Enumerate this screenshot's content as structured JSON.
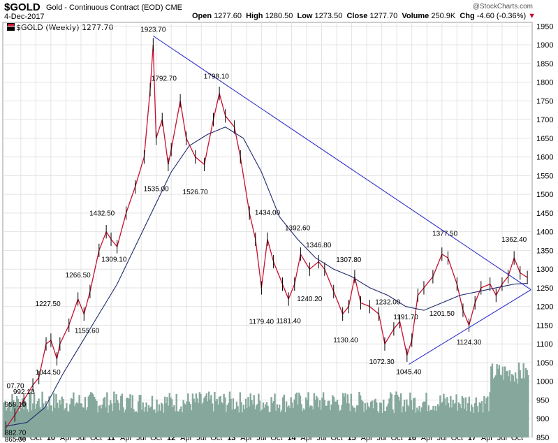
{
  "header": {
    "symbol": "$GOLD",
    "description": "Gold - Continuous Contract (EOD)",
    "exchange": "CME",
    "date": "4-Dec-2017",
    "open_label": "Open",
    "open": "1277.60",
    "high_label": "High",
    "high": "1280.50",
    "low_label": "Low",
    "low": "1273.50",
    "close_label": "Close",
    "close": "1277.70",
    "volume_label": "Volume",
    "volume": "250.9K",
    "chg_label": "Chg",
    "chg": "-4.60 (-0.36%)",
    "brand": "@StockCharts.com"
  },
  "legend": {
    "text": "$GOLD (Weekly) 1277.70"
  },
  "colors": {
    "up": "#000000",
    "down": "#c8102e",
    "trendline": "#3333cc",
    "ma": "#1f2a6b",
    "volume": "#86a89c",
    "grid": "#e3e3e3"
  },
  "chart_data": {
    "type": "line",
    "ylim": [
      850,
      1960
    ],
    "y_ticks": [
      850,
      900,
      950,
      1000,
      1050,
      1100,
      1150,
      1200,
      1250,
      1300,
      1350,
      1400,
      1450,
      1500,
      1550,
      1600,
      1650,
      1700,
      1750,
      1800,
      1850,
      1900,
      1950
    ],
    "x_ticks": [
      "Jul",
      "Oct",
      "10",
      "Apr",
      "Jul",
      "Oct",
      "11",
      "Apr",
      "Jul",
      "Oct",
      "12",
      "Apr",
      "Jul",
      "Oct",
      "13",
      "Apr",
      "Jul",
      "Oct",
      "14",
      "Apr",
      "Jul",
      "Oct",
      "15",
      "Apr",
      "Jul",
      "Oct",
      "16",
      "Apr",
      "Jul",
      "Oct",
      "17",
      "Apr",
      "Jul",
      "Oct"
    ],
    "series": [
      {
        "values": [
          [
            2009.25,
            875
          ],
          [
            2009.4,
            910
          ],
          [
            2009.55,
            950
          ],
          [
            2009.7,
            990
          ],
          [
            2009.8,
            1010
          ],
          [
            2009.92,
            1100
          ],
          [
            2010.0,
            1110
          ],
          [
            2010.1,
            1060
          ],
          [
            2010.15,
            1100
          ],
          [
            2010.3,
            1150
          ],
          [
            2010.45,
            1220
          ],
          [
            2010.55,
            1180
          ],
          [
            2010.65,
            1240
          ],
          [
            2010.8,
            1350
          ],
          [
            2010.92,
            1400
          ],
          [
            2011.0,
            1380
          ],
          [
            2011.1,
            1360
          ],
          [
            2011.25,
            1450
          ],
          [
            2011.4,
            1520
          ],
          [
            2011.55,
            1600
          ],
          [
            2011.65,
            1780
          ],
          [
            2011.7,
            1900
          ],
          [
            2011.75,
            1650
          ],
          [
            2011.85,
            1700
          ],
          [
            2011.95,
            1580
          ],
          [
            2012.0,
            1620
          ],
          [
            2012.15,
            1750
          ],
          [
            2012.25,
            1650
          ],
          [
            2012.4,
            1600
          ],
          [
            2012.55,
            1580
          ],
          [
            2012.7,
            1700
          ],
          [
            2012.8,
            1770
          ],
          [
            2012.9,
            1710
          ],
          [
            2013.05,
            1680
          ],
          [
            2013.15,
            1600
          ],
          [
            2013.3,
            1450
          ],
          [
            2013.4,
            1380
          ],
          [
            2013.5,
            1250
          ],
          [
            2013.6,
            1380
          ],
          [
            2013.7,
            1320
          ],
          [
            2013.85,
            1260
          ],
          [
            2013.95,
            1220
          ],
          [
            2014.05,
            1260
          ],
          [
            2014.15,
            1340
          ],
          [
            2014.3,
            1300
          ],
          [
            2014.45,
            1320
          ],
          [
            2014.55,
            1300
          ],
          [
            2014.7,
            1240
          ],
          [
            2014.85,
            1180
          ],
          [
            2014.95,
            1200
          ],
          [
            2015.05,
            1280
          ],
          [
            2015.15,
            1210
          ],
          [
            2015.3,
            1200
          ],
          [
            2015.45,
            1180
          ],
          [
            2015.55,
            1100
          ],
          [
            2015.7,
            1140
          ],
          [
            2015.8,
            1160
          ],
          [
            2015.92,
            1070
          ],
          [
            2016.0,
            1110
          ],
          [
            2016.1,
            1230
          ],
          [
            2016.2,
            1250
          ],
          [
            2016.35,
            1280
          ],
          [
            2016.5,
            1340
          ],
          [
            2016.6,
            1330
          ],
          [
            2016.75,
            1260
          ],
          [
            2016.85,
            1190
          ],
          [
            2016.95,
            1150
          ],
          [
            2017.05,
            1210
          ],
          [
            2017.15,
            1250
          ],
          [
            2017.3,
            1260
          ],
          [
            2017.4,
            1230
          ],
          [
            2017.5,
            1260
          ],
          [
            2017.6,
            1280
          ],
          [
            2017.7,
            1330
          ],
          [
            2017.8,
            1290
          ],
          [
            2017.92,
            1277.7
          ]
        ]
      },
      {
        "name": "",
        "values": [
          [
            2009.25,
            880
          ],
          [
            2009.6,
            890
          ],
          [
            2009.9,
            930
          ],
          [
            2010.2,
            1020
          ],
          [
            2010.5,
            1100
          ],
          [
            2010.8,
            1180
          ],
          [
            2011.1,
            1260
          ],
          [
            2011.4,
            1360
          ],
          [
            2011.7,
            1460
          ],
          [
            2012.0,
            1560
          ],
          [
            2012.3,
            1630
          ],
          [
            2012.6,
            1660
          ],
          [
            2012.9,
            1680
          ],
          [
            2013.2,
            1650
          ],
          [
            2013.5,
            1560
          ],
          [
            2013.8,
            1440
          ],
          [
            2014.1,
            1380
          ],
          [
            2014.4,
            1330
          ],
          [
            2014.7,
            1300
          ],
          [
            2015.0,
            1280
          ],
          [
            2015.3,
            1250
          ],
          [
            2015.6,
            1230
          ],
          [
            2015.9,
            1200
          ],
          [
            2016.2,
            1190
          ],
          [
            2016.5,
            1210
          ],
          [
            2016.8,
            1230
          ],
          [
            2017.1,
            1240
          ],
          [
            2017.4,
            1250
          ],
          [
            2017.7,
            1260
          ],
          [
            2017.92,
            1262
          ]
        ]
      }
    ],
    "trendlines": [
      [
        [
          2011.7,
          1923.7
        ],
        [
          2017.98,
          1245
        ]
      ],
      [
        [
          2015.95,
          1045.4
        ],
        [
          2017.98,
          1245
        ]
      ]
    ],
    "annotations": [
      {
        "text": "1923.70",
        "x": 2011.7,
        "y": 1923.7
      },
      {
        "text": "1792.70",
        "x": 2011.88,
        "y": 1792.7
      },
      {
        "text": "1798.10",
        "x": 2012.75,
        "y": 1798.1
      },
      {
        "text": "1535.00",
        "x": 2011.75,
        "y": 1535
      },
      {
        "text": "1526.70",
        "x": 2012.4,
        "y": 1526.7
      },
      {
        "text": "1432.50",
        "x": 2010.85,
        "y": 1432.5
      },
      {
        "text": "1434.00",
        "x": 2013.6,
        "y": 1434
      },
      {
        "text": "1392.60",
        "x": 2014.1,
        "y": 1392.6
      },
      {
        "text": "1346.80",
        "x": 2014.45,
        "y": 1346.8
      },
      {
        "text": "1307.80",
        "x": 2014.95,
        "y": 1307.8
      },
      {
        "text": "1377.50",
        "x": 2016.55,
        "y": 1377.5
      },
      {
        "text": "1362.40",
        "x": 2017.7,
        "y": 1362.4
      },
      {
        "text": "1266.50",
        "x": 2010.45,
        "y": 1266.5
      },
      {
        "text": "1309.10",
        "x": 2011.05,
        "y": 1309.1
      },
      {
        "text": "1227.50",
        "x": 2009.95,
        "y": 1227.5
      },
      {
        "text": "1232.00",
        "x": 2015.6,
        "y": 1232
      },
      {
        "text": "1240.20",
        "x": 2014.3,
        "y": 1240.2
      },
      {
        "text": "1191.70",
        "x": 2015.9,
        "y": 1191.7
      },
      {
        "text": "1201.50",
        "x": 2016.5,
        "y": 1201.5
      },
      {
        "text": "1155.60",
        "x": 2010.6,
        "y": 1155.6
      },
      {
        "text": "1179.40",
        "x": 2013.5,
        "y": 1179.4
      },
      {
        "text": "1181.40",
        "x": 2013.95,
        "y": 1181.4
      },
      {
        "text": "1130.40",
        "x": 2014.9,
        "y": 1130.4
      },
      {
        "text": "1124.30",
        "x": 2016.95,
        "y": 1124.3
      },
      {
        "text": "1072.30",
        "x": 2015.5,
        "y": 1072.3
      },
      {
        "text": "1045.40",
        "x": 2015.95,
        "y": 1045.4
      },
      {
        "text": "1044.50",
        "x": 2009.95,
        "y": 1044.5
      },
      {
        "text": "992.10",
        "x": 2009.55,
        "y": 992.1
      },
      {
        "text": "958.10",
        "x": 2009.35,
        "y": 958.1
      },
      {
        "text": "882.70",
        "x": 2009.35,
        "y": 882.7
      },
      {
        "text": "865.00",
        "x": 2009.35,
        "y": 865
      },
      {
        "text": "07.70",
        "x": 2009.25,
        "y": 1007.7
      }
    ]
  }
}
